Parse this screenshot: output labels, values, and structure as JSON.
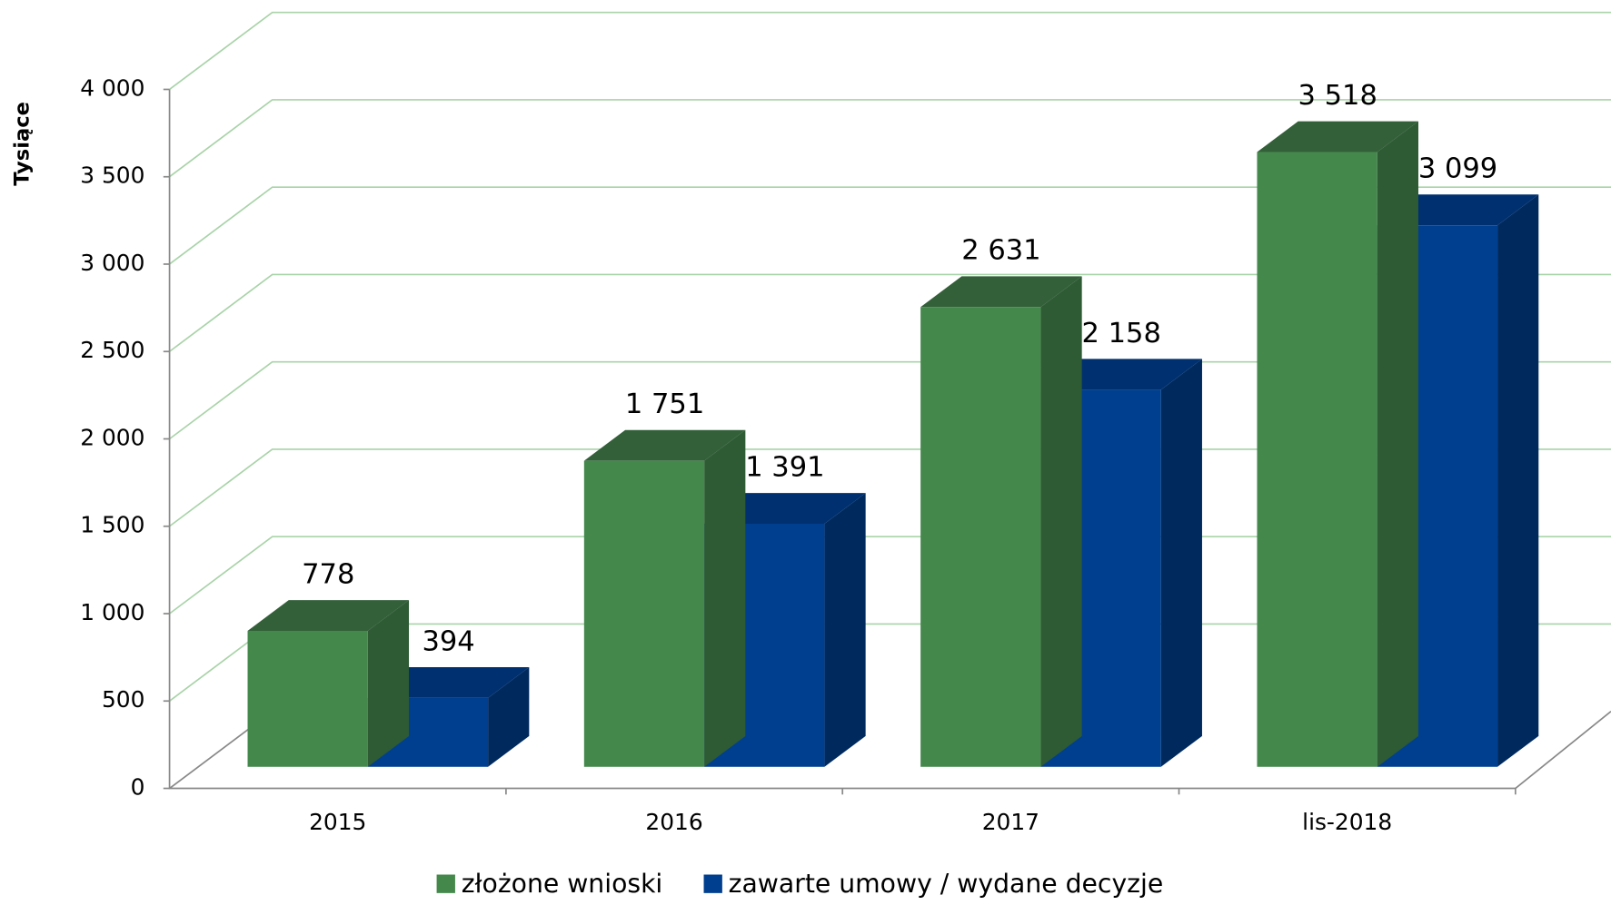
{
  "chart_data": {
    "type": "bar3d",
    "y_label": "Tysiące",
    "categories": [
      "2015",
      "2016",
      "2017",
      "lis-2018"
    ],
    "series": [
      {
        "name": "złożone wnioski",
        "color": "#44884c",
        "values": [
          778,
          1751,
          2631,
          3518
        ],
        "value_labels": [
          "778",
          "1 751",
          "2 631",
          "3 518"
        ]
      },
      {
        "name": "zawarte umowy / wydane decyzje",
        "color": "#003f8f",
        "values": [
          394,
          1391,
          2158,
          3099
        ],
        "value_labels": [
          "394",
          "1 391",
          "2 158",
          "3 099"
        ]
      }
    ],
    "ylim": [
      0,
      4000
    ],
    "yticks": [
      0,
      500,
      {
        "value": 1000,
        "label": "1 000"
      },
      {
        "value": 1500,
        "label": "1 500"
      },
      {
        "value": 2000,
        "label": "2 000"
      },
      {
        "value": 2500,
        "label": "2 500"
      },
      {
        "value": 3000,
        "label": "3 000"
      },
      {
        "value": 3500,
        "label": "3 500"
      },
      {
        "value": 4000,
        "label": "4 000"
      }
    ],
    "grid": true,
    "legend": "bottom"
  }
}
